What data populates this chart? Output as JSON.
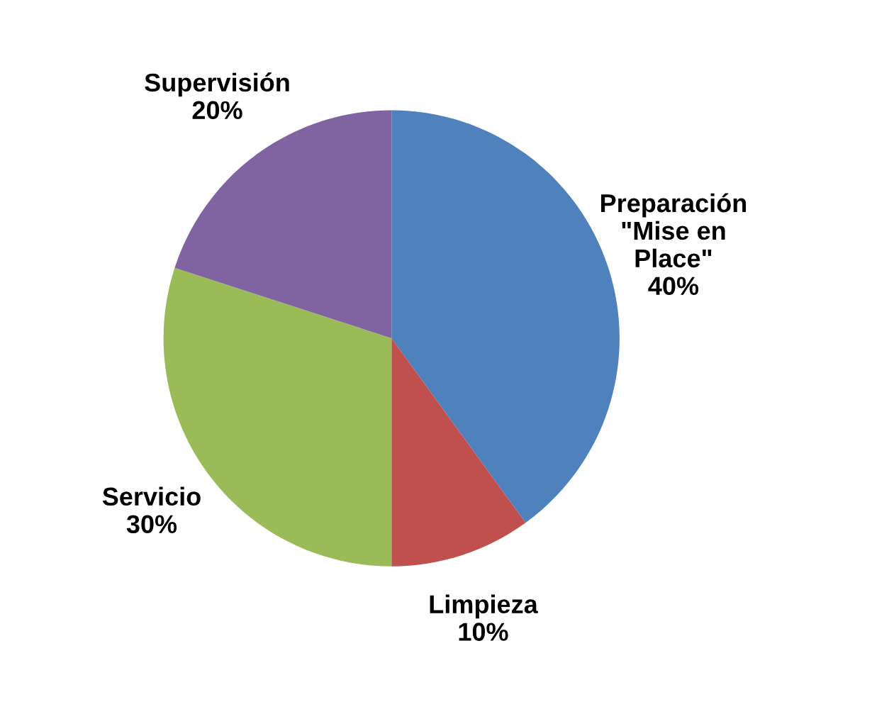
{
  "chart_data": {
    "type": "pie",
    "categories": [
      "Preparación\n\"Mise en\nPlace\"",
      "Limpieza",
      "Servicio",
      "Supervisión"
    ],
    "values": [
      40,
      10,
      30,
      20
    ],
    "value_labels": [
      "40%",
      "10%",
      "30%",
      "20%"
    ],
    "colors": [
      "#4f81bd",
      "#c0504d",
      "#9bbb59",
      "#8064a2"
    ]
  }
}
